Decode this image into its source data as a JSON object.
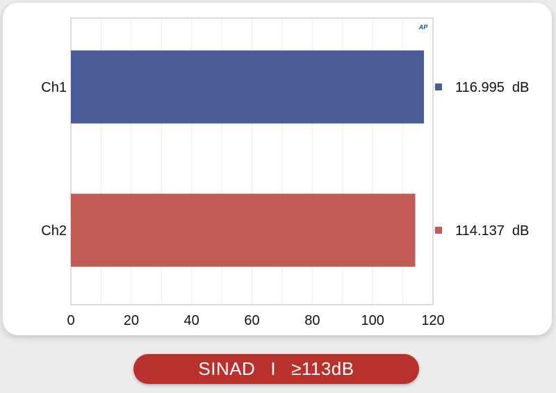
{
  "chart_data": {
    "type": "bar",
    "orientation": "horizontal",
    "categories": [
      "Ch1",
      "Ch2"
    ],
    "values": [
      116.995,
      114.137
    ],
    "value_labels": [
      "116.995  dB",
      "114.137  dB"
    ],
    "colors": [
      "#4a5b96",
      "#c25a56"
    ],
    "xlim": [
      0,
      120
    ],
    "xticks": [
      "0",
      "20",
      "40",
      "60",
      "80",
      "100",
      "120"
    ],
    "grid": true,
    "logo": "AP"
  },
  "badge": {
    "label": "SINAD",
    "separator": "I",
    "value": "≥113dB",
    "color": "#b8312d"
  }
}
